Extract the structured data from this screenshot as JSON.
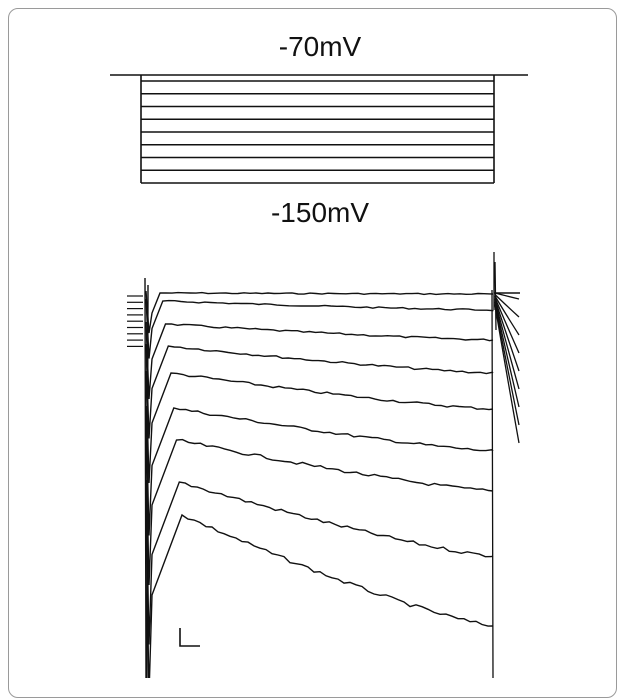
{
  "protocol": {
    "holding_label": "-70mV",
    "min_step_label": "-150mV",
    "step_count": 9
  },
  "recording": {
    "sweep_count": 9
  },
  "colors": {
    "trace": "#111111",
    "border": "#9a9a9a",
    "background": "#ffffff"
  }
}
